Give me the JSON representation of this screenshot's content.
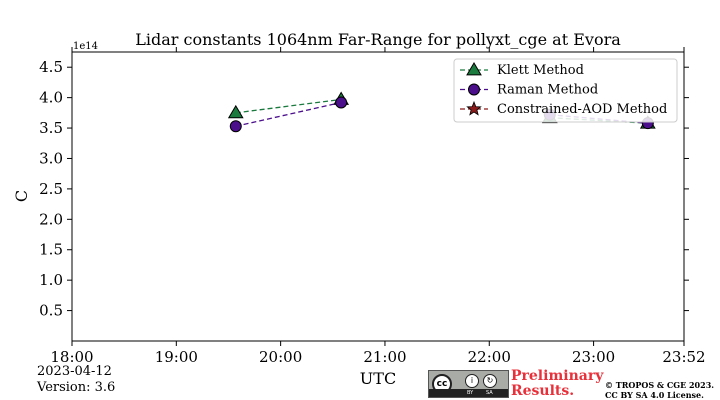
{
  "chart_data": {
    "type": "line",
    "title": "Lidar constants 1064nm Far-Range for pollyxt_cge at Evora",
    "xlabel": "UTC",
    "ylabel": "C",
    "y_offset_label": "1e14",
    "x_ticks": [
      "18:00",
      "19:00",
      "20:00",
      "21:00",
      "22:00",
      "23:00",
      "23:52"
    ],
    "x_range_hours": [
      18.0,
      23.8667
    ],
    "y_ticks": [
      "0.5",
      "1.0",
      "1.5",
      "2.0",
      "2.5",
      "3.0",
      "3.5",
      "4.0",
      "4.5"
    ],
    "ylim": [
      0.0,
      4.75
    ],
    "grid": false,
    "legend_position": "top-right",
    "series": [
      {
        "name": "Klett Method",
        "color": "#1b7a3e",
        "marker": "triangle",
        "x_hours": [
          19.57,
          20.58,
          22.58,
          23.52
        ],
        "values": [
          3.75,
          3.97,
          3.67,
          3.58
        ],
        "line_segments": [
          [
            0,
            1
          ],
          [
            2,
            3
          ]
        ]
      },
      {
        "name": "Raman Method",
        "color": "#4b0f8c",
        "marker": "circle",
        "x_hours": [
          19.57,
          20.58,
          22.58,
          23.52
        ],
        "values": [
          3.53,
          3.92,
          3.72,
          3.58
        ],
        "line_segments": [
          [
            0,
            1
          ],
          [
            2,
            3
          ]
        ]
      },
      {
        "name": "Constrained-AOD Method",
        "color": "#8b1a1a",
        "marker": "star",
        "x_hours": [],
        "values": [],
        "line_segments": []
      }
    ]
  },
  "footer": {
    "date": "2023-04-12",
    "version": "Version: 3.6",
    "preliminary_line1": "Preliminary",
    "preliminary_line2": "Results.",
    "copyright_line1": "© TROPOS & CGE 2023.",
    "copyright_line2": "CC BY SA 4.0 License.",
    "license_badge": "cc",
    "license_by": "BY",
    "license_sa": "SA"
  }
}
